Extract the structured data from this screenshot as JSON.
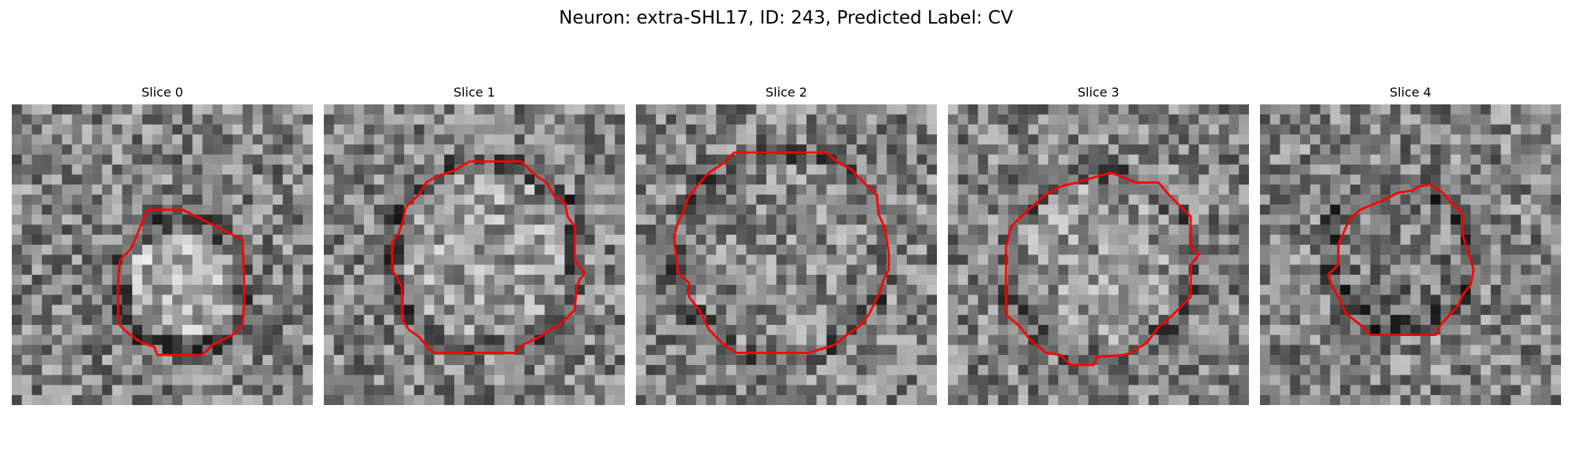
{
  "suptitle": "Neuron: extra-SHL17, ID: 243, Predicted Label: CV",
  "contour_color": "#ff0000",
  "slices": [
    {
      "title": "Slice 0"
    },
    {
      "title": "Slice 1"
    },
    {
      "title": "Slice 2"
    },
    {
      "title": "Slice 3"
    },
    {
      "title": "Slice 4"
    }
  ]
}
